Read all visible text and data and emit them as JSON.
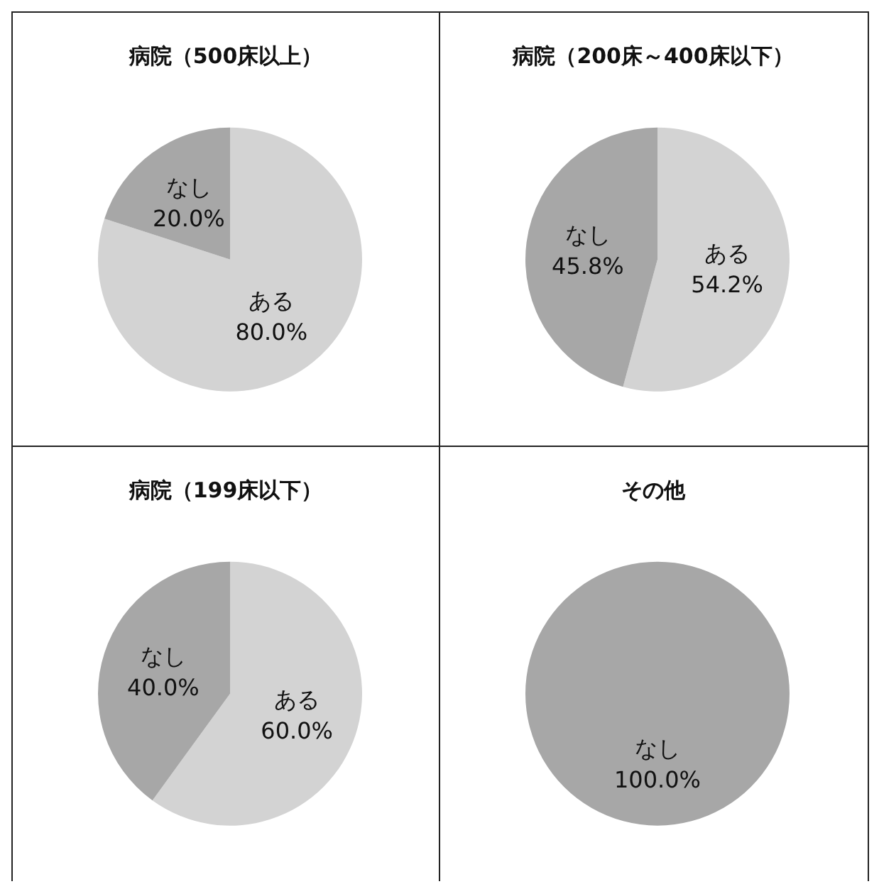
{
  "chart_data": [
    {
      "type": "pie",
      "title": "病院（500床以上）",
      "categories": [
        "ある",
        "なし"
      ],
      "values": [
        80,
        20
      ],
      "colors": [
        "#d3d3d3",
        "#a7a7a7"
      ],
      "value_labels": [
        "80.0%",
        "20.0%"
      ]
    },
    {
      "type": "pie",
      "title": "病院（200床～400床以下）",
      "categories": [
        "ある",
        "なし"
      ],
      "values": [
        54.2,
        45.8
      ],
      "colors": [
        "#d3d3d3",
        "#a7a7a7"
      ],
      "value_labels": [
        "54.2%",
        "45.8%"
      ]
    },
    {
      "type": "pie",
      "title": "病院（199床以下）",
      "categories": [
        "ある",
        "なし"
      ],
      "values": [
        60,
        40
      ],
      "colors": [
        "#d3d3d3",
        "#a7a7a7"
      ],
      "value_labels": [
        "60.0%",
        "40.0%"
      ]
    },
    {
      "type": "pie",
      "title": "その他",
      "categories": [
        "なし"
      ],
      "values": [
        100
      ],
      "colors": [
        "#a7a7a7"
      ],
      "value_labels": [
        "100.0%"
      ]
    }
  ]
}
